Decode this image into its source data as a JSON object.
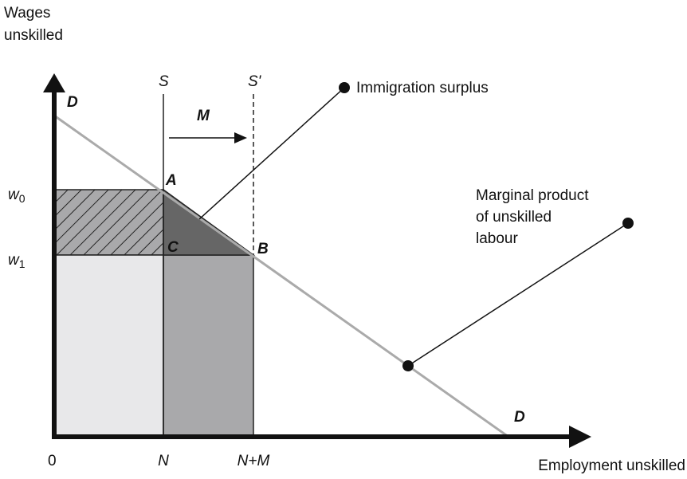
{
  "axes": {
    "y_label": [
      "Wages",
      "unskilled"
    ],
    "x_label": "Employment unskilled",
    "origin": "0"
  },
  "labels": {
    "S": "S",
    "S_prime": "S'",
    "D_top": "D",
    "D_bottom": "D",
    "M": "M",
    "A": "A",
    "B": "B",
    "C": "C",
    "w0": {
      "base": "w",
      "sub": "0"
    },
    "w1": {
      "base": "w",
      "sub": "1"
    },
    "N": "N",
    "NM": "N+M"
  },
  "annotations": {
    "surplus": "Immigration surplus",
    "marginal": [
      "Marginal product",
      "of unskilled",
      "labour"
    ]
  }
}
